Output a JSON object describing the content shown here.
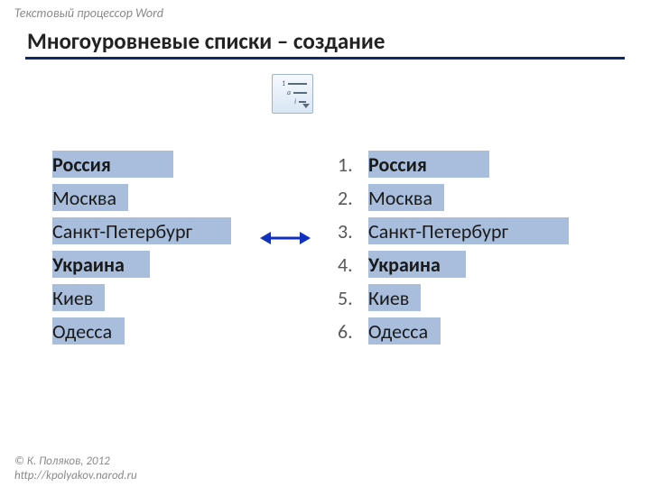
{
  "header": {
    "label": "Текстовый процессор Word"
  },
  "title": "Многоуровневые списки – создание",
  "colors": {
    "accent_line": "#0e2a6b",
    "highlight": "#a8bedc",
    "arrow": "#1030c0",
    "text": "#1a1a1a",
    "muted": "#8a8a8a"
  },
  "list_left": [
    {
      "text": "Россия",
      "bold": true,
      "hl_width": 134
    },
    {
      "text": "Москва",
      "bold": false,
      "hl_width": 84
    },
    {
      "text": "Санкт-Петербург",
      "bold": false,
      "hl_width": 198
    },
    {
      "text": "Украина",
      "bold": true,
      "hl_width": 108
    },
    {
      "text": "Киев",
      "bold": false,
      "hl_width": 58
    },
    {
      "text": "Одесса",
      "bold": false,
      "hl_width": 80
    }
  ],
  "list_right": [
    {
      "num": "1.",
      "text": "Россия",
      "bold": true,
      "hl_width": 134
    },
    {
      "num": "2.",
      "text": "Москва",
      "bold": false,
      "hl_width": 84
    },
    {
      "num": "3.",
      "text": "Санкт-Петербург",
      "bold": false,
      "hl_width": 222
    },
    {
      "num": "4.",
      "text": "Украина",
      "bold": true,
      "hl_width": 108
    },
    {
      "num": "5.",
      "text": "Киев",
      "bold": false,
      "hl_width": 58
    },
    {
      "num": "6.",
      "text": "Одесса",
      "bold": false,
      "hl_width": 80
    }
  ],
  "toolbar_icon": {
    "rows": [
      "1",
      "a",
      "i"
    ]
  },
  "footer": {
    "line1": "© К. Поляков, 2012",
    "line2": "http://kpolyakov.narod.ru"
  }
}
